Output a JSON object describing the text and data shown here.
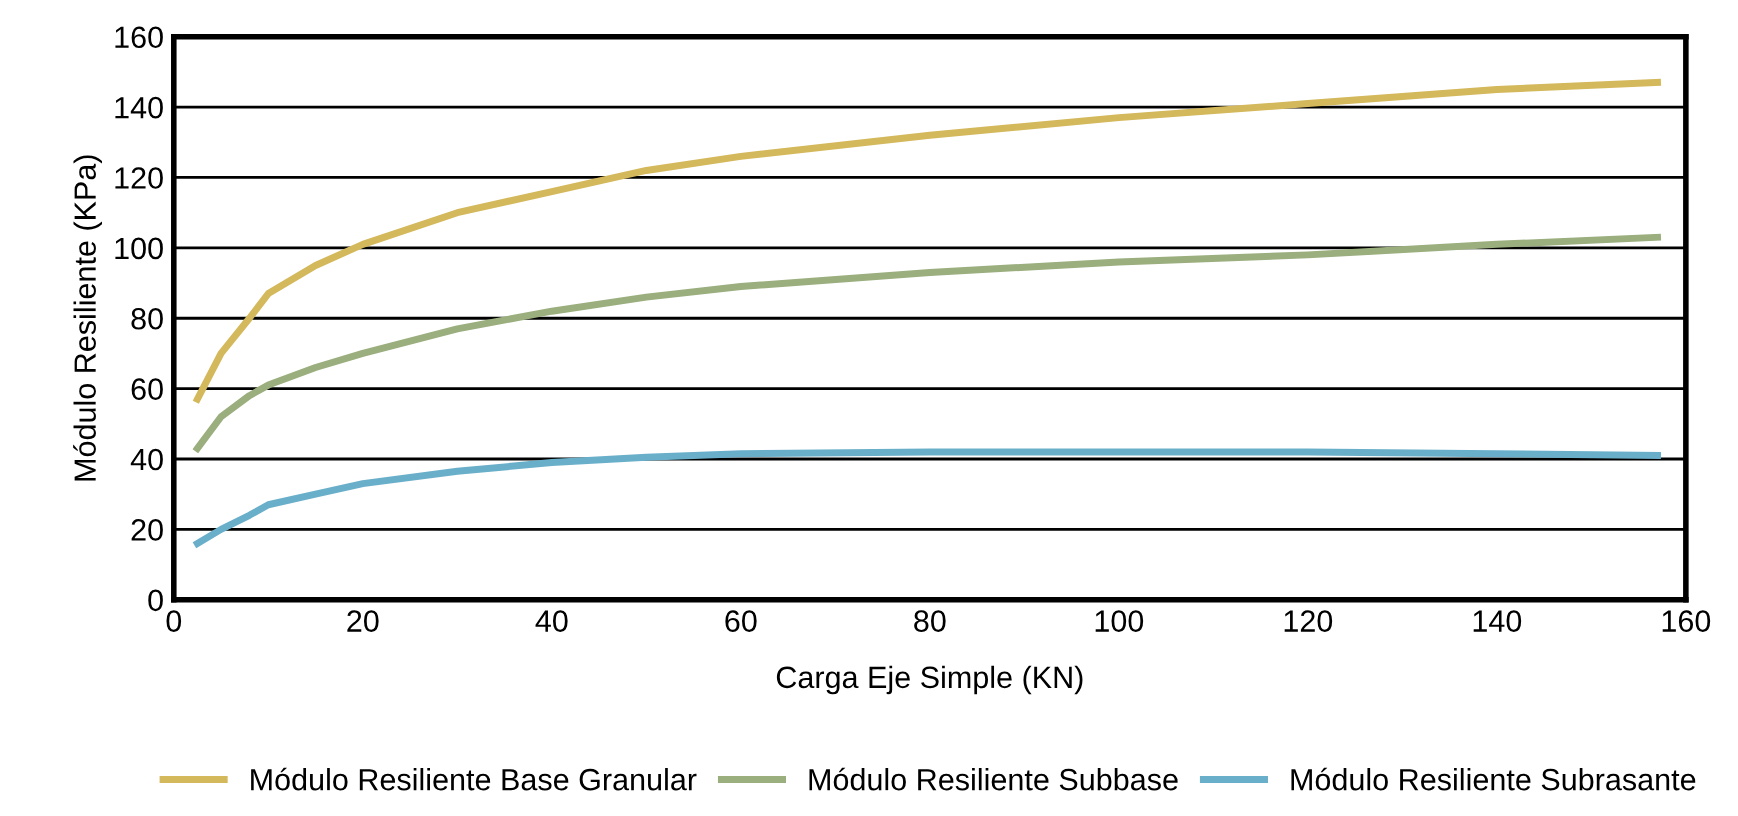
{
  "chart_data": {
    "type": "line",
    "xlabel": "Carga Eje Simple (KN)",
    "ylabel": "Módulo Resiliente (KPa)",
    "x": [
      2.5,
      5,
      8,
      10,
      15,
      20,
      30,
      40,
      50,
      60,
      80,
      100,
      120,
      140,
      157
    ],
    "series": [
      {
        "name": "Módulo Resiliente Base Granular",
        "color": "#d4b85c",
        "values": [
          57,
          70,
          80,
          87,
          95,
          101,
          110,
          116,
          122,
          126,
          132,
          137,
          141,
          145,
          147
        ]
      },
      {
        "name": "Módulo Resiliente Subbase",
        "color": "#9aae7e",
        "values": [
          43,
          52,
          58,
          61,
          66,
          70,
          77,
          82,
          86,
          89,
          93,
          96,
          98,
          101,
          103
        ]
      },
      {
        "name": "Módulo Resiliente Subrasante",
        "color": "#6aafc9",
        "values": [
          16,
          20,
          24,
          27,
          30,
          33,
          36.5,
          39,
          40.5,
          41.5,
          42,
          42,
          42,
          41.5,
          41
        ]
      }
    ],
    "xlim": [
      0,
      160
    ],
    "xticks": [
      0,
      20,
      40,
      60,
      80,
      100,
      120,
      140,
      160
    ],
    "ylim": [
      0,
      160
    ],
    "yticks": [
      0,
      20,
      40,
      60,
      80,
      100,
      120,
      140,
      160
    ],
    "grid": "y",
    "legend": "bottom",
    "marker": "none",
    "line_style": "solid"
  }
}
